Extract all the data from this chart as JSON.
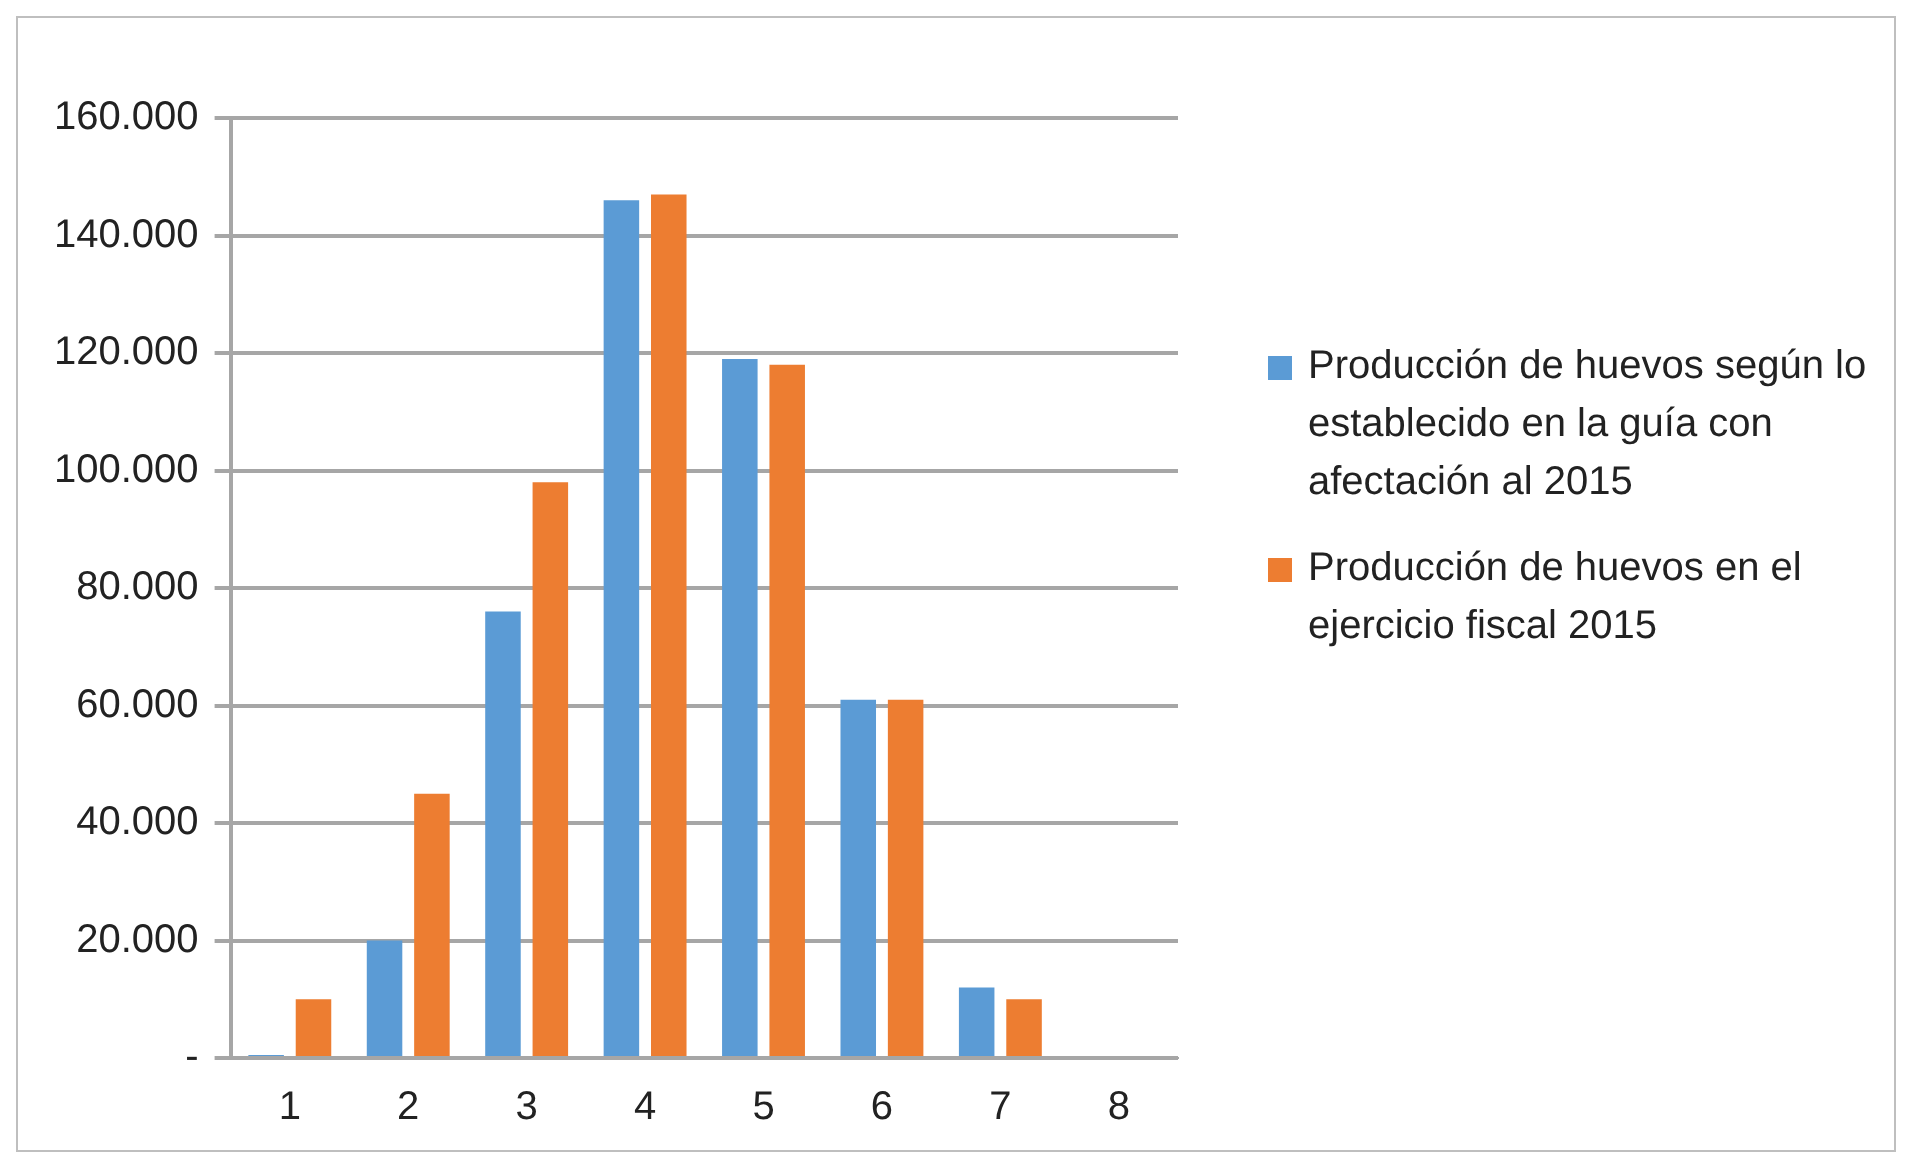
{
  "chart_data": {
    "type": "bar",
    "categories": [
      "1",
      "2",
      "3",
      "4",
      "5",
      "6",
      "7",
      "8"
    ],
    "series": [
      {
        "name": "Producción de huevos según lo establecido en la guía con afectación al 2015",
        "color": "#5b9bd5",
        "values": [
          500,
          20000,
          76000,
          146000,
          119000,
          61000,
          12000,
          null
        ]
      },
      {
        "name": "Producción de huevos en el ejercicio fiscal 2015",
        "color": "#ed7d31",
        "values": [
          10000,
          45000,
          98000,
          147000,
          118000,
          61000,
          10000,
          null
        ]
      }
    ],
    "ylim": [
      0,
      160000
    ],
    "yticks": [
      {
        "value": 0,
        "label": "-"
      },
      {
        "value": 20000,
        "label": "20.000"
      },
      {
        "value": 40000,
        "label": "40.000"
      },
      {
        "value": 60000,
        "label": "60.000"
      },
      {
        "value": 80000,
        "label": "80.000"
      },
      {
        "value": 100000,
        "label": "100.000"
      },
      {
        "value": 120000,
        "label": "120.000"
      },
      {
        "value": 140000,
        "label": "140.000"
      },
      {
        "value": 160000,
        "label": "160.000"
      }
    ],
    "grid": "y",
    "legend": "right"
  }
}
